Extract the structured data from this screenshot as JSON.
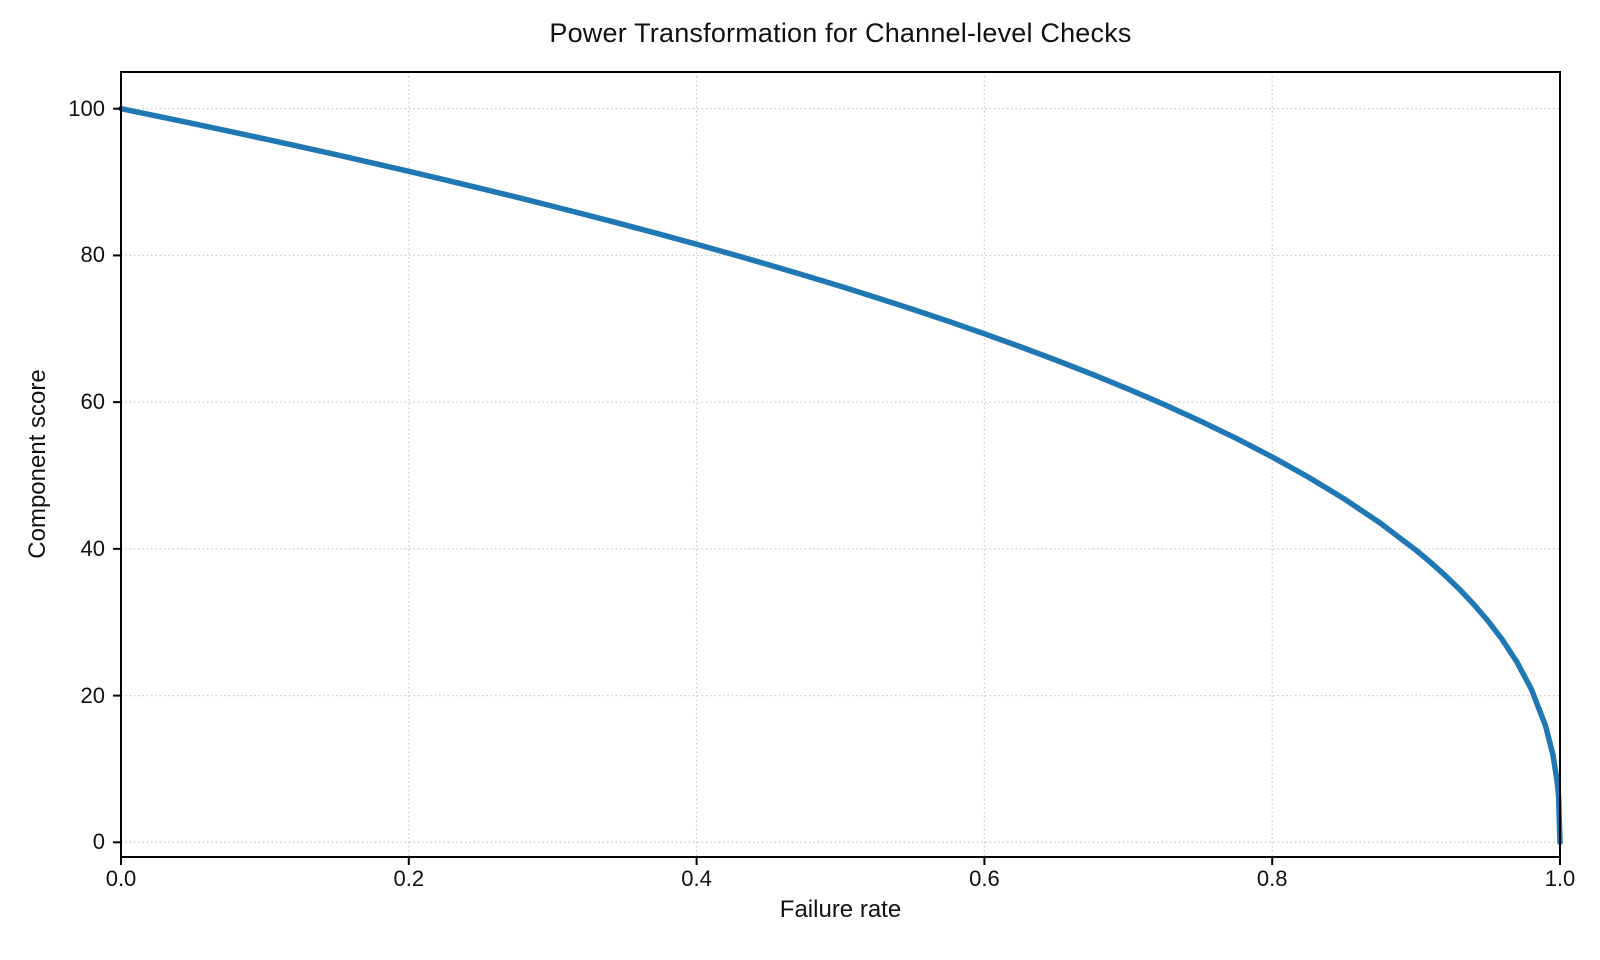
{
  "chart_data": {
    "type": "line",
    "title": "Power Transformation for Channel-level Checks",
    "xlabel": "Failure rate",
    "ylabel": "Component score",
    "xlim": [
      0.0,
      1.0
    ],
    "ylim": [
      -2,
      105
    ],
    "xticks": {
      "values": [
        0.0,
        0.2,
        0.4,
        0.6,
        0.8,
        1.0
      ],
      "labels": [
        "0.0",
        "0.2",
        "0.4",
        "0.6",
        "0.8",
        "1.0"
      ]
    },
    "yticks": {
      "values": [
        0,
        20,
        40,
        60,
        80,
        100
      ],
      "labels": [
        "0",
        "20",
        "40",
        "60",
        "80",
        "100"
      ]
    },
    "grid": {
      "visible": true,
      "style": "dotted",
      "color": "#cccccc"
    },
    "colors": {
      "line": "#1f77b4",
      "spine": "#000000",
      "text": "#111111",
      "background": "#ffffff"
    },
    "series": [
      {
        "color": "#1f77b4",
        "line_width": 5.5,
        "x": [
          0,
          0.025,
          0.05,
          0.075,
          0.1,
          0.125,
          0.15,
          0.175,
          0.2,
          0.225,
          0.25,
          0.275,
          0.3,
          0.325,
          0.35,
          0.375,
          0.4,
          0.425,
          0.45,
          0.475,
          0.5,
          0.525,
          0.55,
          0.575,
          0.6,
          0.625,
          0.65,
          0.675,
          0.7,
          0.725,
          0.75,
          0.775,
          0.8,
          0.825,
          0.85,
          0.875,
          0.9,
          0.91,
          0.92,
          0.93,
          0.94,
          0.95,
          0.96,
          0.97,
          0.98,
          0.99,
          0.995,
          0.998,
          0.999,
          1.0
        ],
        "y": [
          100,
          98.99,
          97.97,
          96.93,
          95.87,
          94.8,
          93.71,
          92.59,
          91.46,
          90.31,
          89.13,
          87.93,
          86.7,
          85.45,
          84.17,
          82.86,
          81.52,
          80.14,
          78.73,
          77.28,
          75.79,
          74.25,
          72.66,
          71.02,
          69.31,
          67.55,
          65.71,
          63.79,
          61.78,
          59.67,
          57.43,
          55.07,
          52.53,
          49.8,
          46.82,
          43.53,
          39.81,
          38.17,
          36.41,
          34.52,
          32.45,
          30.17,
          27.6,
          24.6,
          20.91,
          15.85,
          12.01,
          8.33,
          6.31,
          0
        ]
      }
    ]
  }
}
